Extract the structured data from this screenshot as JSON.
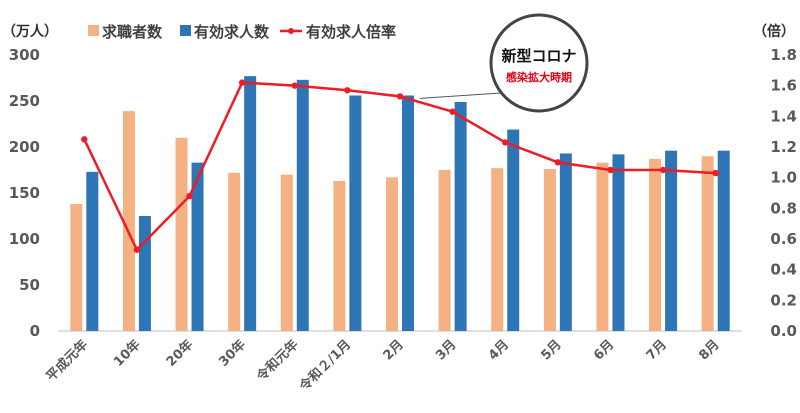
{
  "chart_data": {
    "type": "bar",
    "categories": [
      "平成元年",
      "10年",
      "20年",
      "30年",
      "令和元年",
      "令和２/1月",
      "2月",
      "3月",
      "4月",
      "5月",
      "6月",
      "7月",
      "8月"
    ],
    "series": [
      {
        "name": "求職者数",
        "type": "bar",
        "axis": "left",
        "color": "#f4b183",
        "values": [
          138,
          239,
          210,
          172,
          170,
          163,
          167,
          175,
          177,
          176,
          183,
          187,
          190
        ]
      },
      {
        "name": "有効求人数",
        "type": "bar",
        "axis": "left",
        "color": "#2e75b6",
        "values": [
          173,
          125,
          183,
          277,
          273,
          256,
          256,
          249,
          219,
          193,
          192,
          196,
          196
        ]
      },
      {
        "name": "有効求人倍率",
        "type": "line",
        "axis": "right",
        "color": "#ee1c25",
        "values": [
          1.25,
          0.53,
          0.88,
          1.62,
          1.6,
          1.57,
          1.53,
          1.43,
          1.23,
          1.1,
          1.05,
          1.05,
          1.03
        ]
      }
    ],
    "y_left": {
      "unit": "（万人）",
      "min": 0,
      "max": 300,
      "step": 50,
      "ticks": [
        "0",
        "50",
        "100",
        "150",
        "200",
        "250",
        "300"
      ]
    },
    "y_right": {
      "unit": "（倍）",
      "min": 0,
      "max": 1.8,
      "step": 0.2,
      "ticks": [
        "0.0",
        "0.2",
        "0.4",
        "0.6",
        "0.8",
        "1.0",
        "1.2",
        "1.4",
        "1.6",
        "1.8"
      ]
    },
    "legend_position": "top",
    "grid": false,
    "annotation": {
      "title": "新型コロナ",
      "subtitle": "感染拡大時期",
      "points_to": "2月"
    }
  }
}
